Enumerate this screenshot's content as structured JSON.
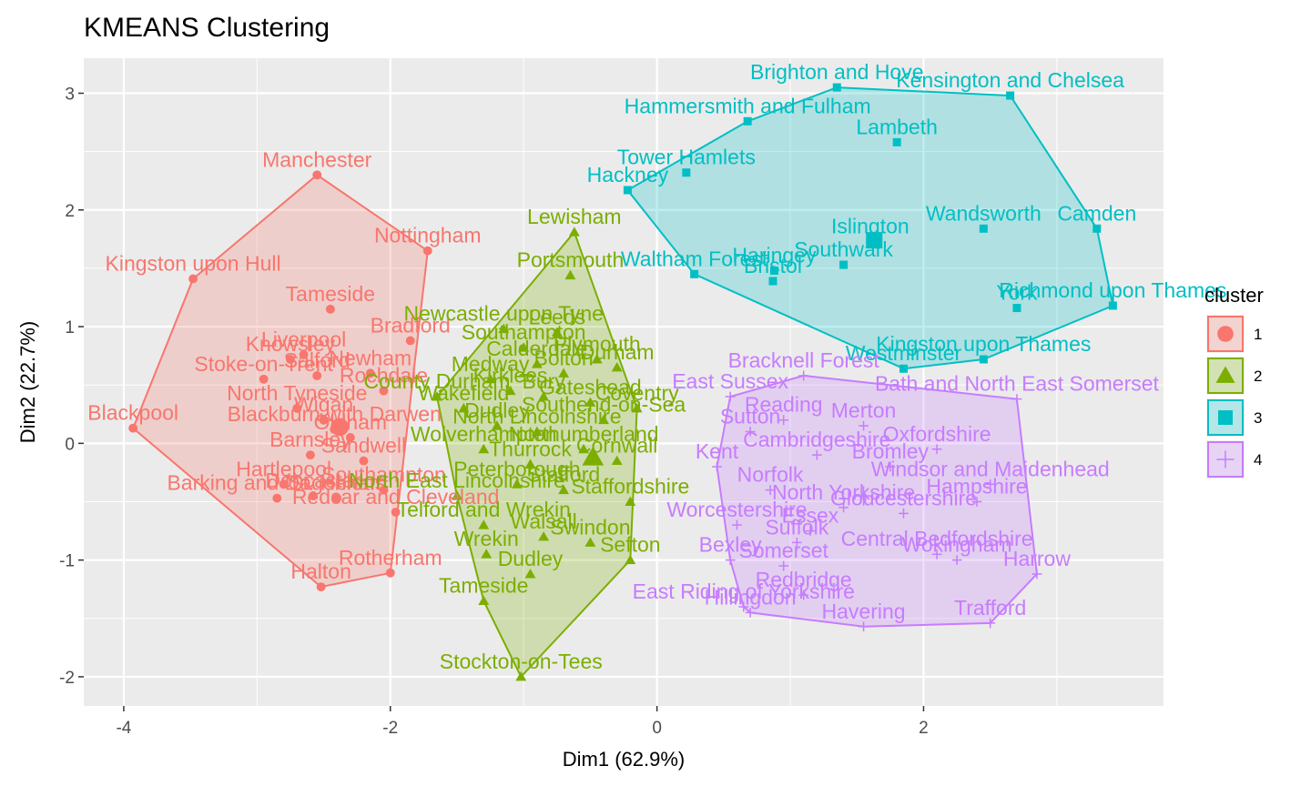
{
  "chart_data": {
    "type": "scatter",
    "title": "KMEANS Clustering",
    "xlabel": "Dim1 (62.9%)",
    "ylabel": "Dim2 (22.7%)",
    "xlim": [
      -4.3,
      3.8
    ],
    "ylim": [
      -2.25,
      3.3
    ],
    "x_ticks": [
      -4,
      -2,
      0,
      2
    ],
    "y_ticks": [
      -2,
      -1,
      0,
      1,
      2,
      3
    ],
    "grid": true,
    "legend": {
      "title": "cluster",
      "position": "right",
      "entries": [
        "1",
        "2",
        "3",
        "4"
      ]
    },
    "colors": {
      "1": "#F8766D",
      "2": "#7CAE00",
      "3": "#00BFC4",
      "4": "#C77CFF"
    },
    "series": [
      {
        "name": "1",
        "marker": "circle",
        "centroid": {
          "x": -2.38,
          "y": 0.14
        },
        "points": [
          {
            "x": -2.55,
            "y": 2.3,
            "label": "Manchester"
          },
          {
            "x": -1.72,
            "y": 1.65,
            "label": "Nottingham"
          },
          {
            "x": -3.48,
            "y": 1.41,
            "label": "Kingston upon Hull"
          },
          {
            "x": -2.45,
            "y": 1.15,
            "label": "Tameside"
          },
          {
            "x": -1.85,
            "y": 0.88,
            "label": "Bradford"
          },
          {
            "x": -2.65,
            "y": 0.76,
            "label": "Liverpool"
          },
          {
            "x": -2.55,
            "y": 0.58,
            "label": "Salford"
          },
          {
            "x": -2.15,
            "y": 0.6,
            "label": "Newham"
          },
          {
            "x": -2.75,
            "y": 0.72,
            "label": "Knowsley"
          },
          {
            "x": -2.95,
            "y": 0.55,
            "label": "Stoke-on-Trent"
          },
          {
            "x": -2.05,
            "y": 0.45,
            "label": "Rochdale"
          },
          {
            "x": -3.93,
            "y": 0.13,
            "label": "Blackpool"
          },
          {
            "x": -2.7,
            "y": 0.3,
            "label": "North Tyneside"
          },
          {
            "x": -2.42,
            "y": 0.12,
            "label": "Blackburn with Darwen"
          },
          {
            "x": -2.3,
            "y": 0.05,
            "label": "Oldham"
          },
          {
            "x": -2.5,
            "y": 0.2,
            "label": "Wigan"
          },
          {
            "x": -2.6,
            "y": -0.1,
            "label": "Barnsley"
          },
          {
            "x": -2.2,
            "y": -0.15,
            "label": "Sandwell"
          },
          {
            "x": -2.8,
            "y": -0.35,
            "label": "Hartlepool"
          },
          {
            "x": -2.85,
            "y": -0.47,
            "label": "Barking and Dagenham"
          },
          {
            "x": -2.05,
            "y": -0.4,
            "label": "Southampton"
          },
          {
            "x": -2.58,
            "y": -0.45,
            "label": "Doncaster"
          },
          {
            "x": -2.4,
            "y": -0.47,
            "label": "St. Helens"
          },
          {
            "x": -1.96,
            "y": -0.59,
            "label": "Redcar and Cleveland"
          },
          {
            "x": -2.0,
            "y": -1.11,
            "label": "Rotherham"
          },
          {
            "x": -2.52,
            "y": -1.23,
            "label": "Halton"
          }
        ]
      },
      {
        "name": "2",
        "marker": "triangle",
        "centroid": {
          "x": -0.48,
          "y": -0.12
        },
        "points": [
          {
            "x": -0.62,
            "y": 1.81,
            "label": "Lewisham"
          },
          {
            "x": -0.65,
            "y": 1.44,
            "label": "Portsmouth"
          },
          {
            "x": -1.15,
            "y": 0.98,
            "label": "Newcastle upon Tyne"
          },
          {
            "x": -0.75,
            "y": 0.95,
            "label": "Leeds"
          },
          {
            "x": -1.0,
            "y": 0.82,
            "label": "Southampton"
          },
          {
            "x": -0.45,
            "y": 0.72,
            "label": "Plymouth"
          },
          {
            "x": -0.9,
            "y": 0.68,
            "label": "Calderdale"
          },
          {
            "x": -1.25,
            "y": 0.55,
            "label": "Medway"
          },
          {
            "x": -0.7,
            "y": 0.6,
            "label": "Bolton"
          },
          {
            "x": -0.3,
            "y": 0.65,
            "label": "Durham"
          },
          {
            "x": -1.1,
            "y": 0.45,
            "label": "Kirklees"
          },
          {
            "x": -1.65,
            "y": 0.4,
            "label": "County Durham"
          },
          {
            "x": -0.85,
            "y": 0.4,
            "label": "Bury"
          },
          {
            "x": -1.45,
            "y": 0.3,
            "label": "Wakefield"
          },
          {
            "x": -0.5,
            "y": 0.35,
            "label": "Gateshead"
          },
          {
            "x": -0.15,
            "y": 0.3,
            "label": "Coventry"
          },
          {
            "x": -1.2,
            "y": 0.15,
            "label": "Dudley"
          },
          {
            "x": -0.4,
            "y": 0.2,
            "label": "Southend-on-Sea"
          },
          {
            "x": -0.9,
            "y": 0.1,
            "label": "North Lincolnshire"
          },
          {
            "x": -1.3,
            "y": -0.05,
            "label": "Wolverhampton"
          },
          {
            "x": -0.55,
            "y": -0.05,
            "label": "Northumberland"
          },
          {
            "x": -0.95,
            "y": -0.18,
            "label": "Thurrock"
          },
          {
            "x": -0.3,
            "y": -0.15,
            "label": "Cornwall"
          },
          {
            "x": -1.05,
            "y": -0.35,
            "label": "Peterborough"
          },
          {
            "x": -0.7,
            "y": -0.4,
            "label": "Stafford"
          },
          {
            "x": -1.5,
            "y": -0.45,
            "label": "North East Lincolnshire"
          },
          {
            "x": -0.2,
            "y": -0.5,
            "label": "Staffordshire"
          },
          {
            "x": -1.3,
            "y": -0.7,
            "label": "Telford and Wrekin"
          },
          {
            "x": -0.85,
            "y": -0.8,
            "label": "Walsall"
          },
          {
            "x": -0.5,
            "y": -0.85,
            "label": "Swindon"
          },
          {
            "x": -1.28,
            "y": -0.95,
            "label": "Wrekin"
          },
          {
            "x": -0.2,
            "y": -1.0,
            "label": "Sefton"
          },
          {
            "x": -0.95,
            "y": -1.12,
            "label": "Dudley"
          },
          {
            "x": -1.3,
            "y": -1.35,
            "label": "Tameside"
          },
          {
            "x": -1.02,
            "y": -2.0,
            "label": "Stockton-on-Tees"
          }
        ]
      },
      {
        "name": "3",
        "marker": "square",
        "centroid": {
          "x": 1.63,
          "y": 1.74
        },
        "points": [
          {
            "x": 1.35,
            "y": 3.05,
            "label": "Brighton and Hove"
          },
          {
            "x": 2.65,
            "y": 2.98,
            "label": "Kensington and Chelsea"
          },
          {
            "x": 0.68,
            "y": 2.76,
            "label": "Hammersmith and Fulham"
          },
          {
            "x": 1.8,
            "y": 2.58,
            "label": "Lambeth"
          },
          {
            "x": 0.22,
            "y": 2.32,
            "label": "Tower Hamlets"
          },
          {
            "x": -0.22,
            "y": 2.17,
            "label": "Hackney"
          },
          {
            "x": 2.45,
            "y": 1.84,
            "label": "Wandsworth"
          },
          {
            "x": 3.3,
            "y": 1.84,
            "label": "Camden"
          },
          {
            "x": 1.6,
            "y": 1.73,
            "label": "Islington"
          },
          {
            "x": 0.88,
            "y": 1.48,
            "label": "Haringey"
          },
          {
            "x": 0.87,
            "y": 1.39,
            "label": "Bristol"
          },
          {
            "x": 1.4,
            "y": 1.53,
            "label": "Southwark"
          },
          {
            "x": 0.28,
            "y": 1.45,
            "label": "Waltham Forest"
          },
          {
            "x": 2.7,
            "y": 1.16,
            "label": "York"
          },
          {
            "x": 3.42,
            "y": 1.18,
            "label": "Richmond upon Thames"
          },
          {
            "x": 2.45,
            "y": 0.72,
            "label": "Kingston upon Thames"
          },
          {
            "x": 1.85,
            "y": 0.64,
            "label": "Westminster"
          }
        ]
      },
      {
        "name": "4",
        "marker": "cross",
        "centroid": {
          "x": 1.55,
          "y": -0.45
        },
        "points": [
          {
            "x": 1.1,
            "y": 0.58,
            "label": "Bracknell Forest"
          },
          {
            "x": 2.7,
            "y": 0.38,
            "label": "Bath and North East Somerset"
          },
          {
            "x": 0.55,
            "y": 0.4,
            "label": "East Sussex"
          },
          {
            "x": 0.95,
            "y": 0.2,
            "label": "Reading"
          },
          {
            "x": 1.55,
            "y": 0.15,
            "label": "Merton"
          },
          {
            "x": 0.7,
            "y": 0.1,
            "label": "Sutton"
          },
          {
            "x": 2.1,
            "y": -0.05,
            "label": "Oxfordshire"
          },
          {
            "x": 1.2,
            "y": -0.1,
            "label": "Cambridgeshire"
          },
          {
            "x": 0.45,
            "y": -0.2,
            "label": "Kent"
          },
          {
            "x": 1.75,
            "y": -0.2,
            "label": "Bromley"
          },
          {
            "x": 2.5,
            "y": -0.35,
            "label": "Windsor and Maidenhead"
          },
          {
            "x": 0.85,
            "y": -0.4,
            "label": "Norfolk"
          },
          {
            "x": 2.4,
            "y": -0.5,
            "label": "Hampshire"
          },
          {
            "x": 1.4,
            "y": -0.55,
            "label": "North Yorkshire"
          },
          {
            "x": 1.85,
            "y": -0.6,
            "label": "Gloucestershire"
          },
          {
            "x": 0.6,
            "y": -0.7,
            "label": "Worcestershire"
          },
          {
            "x": 1.15,
            "y": -0.75,
            "label": "Essex"
          },
          {
            "x": 1.05,
            "y": -0.85,
            "label": "Suffolk"
          },
          {
            "x": 2.1,
            "y": -0.95,
            "label": "Central Bedfordshire"
          },
          {
            "x": 2.25,
            "y": -1.0,
            "label": "Wokingham"
          },
          {
            "x": 0.55,
            "y": -1.0,
            "label": "Bexley"
          },
          {
            "x": 0.95,
            "y": -1.05,
            "label": "Somerset"
          },
          {
            "x": 2.85,
            "y": -1.12,
            "label": "Harrow"
          },
          {
            "x": 1.1,
            "y": -1.3,
            "label": "Redbridge"
          },
          {
            "x": 0.65,
            "y": -1.4,
            "label": "East Riding of Yorkshire"
          },
          {
            "x": 0.7,
            "y": -1.45,
            "label": "Hillingdon"
          },
          {
            "x": 1.55,
            "y": -1.57,
            "label": "Havering"
          },
          {
            "x": 2.5,
            "y": -1.54,
            "label": "Trafford"
          }
        ]
      }
    ]
  }
}
